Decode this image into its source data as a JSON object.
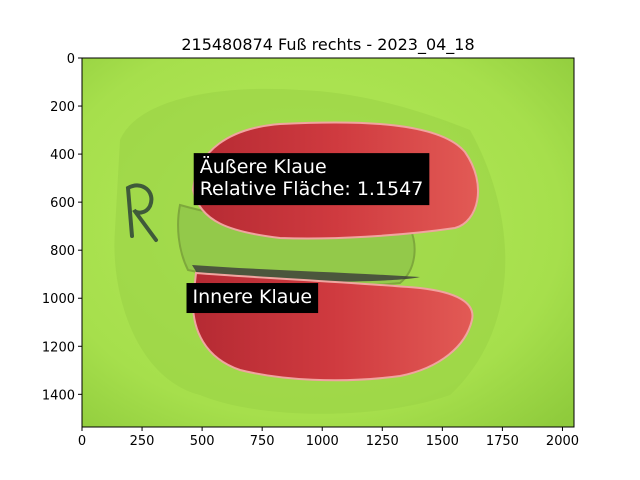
{
  "chart_data": {
    "type": "image",
    "title": "215480874 Fuß rechts - 2023_04_18",
    "xlim": [
      0,
      2048
    ],
    "ylim": [
      1536,
      0
    ],
    "xticks": [
      0,
      250,
      500,
      750,
      1000,
      1250,
      1500,
      1750,
      2000
    ],
    "yticks": [
      0,
      200,
      400,
      600,
      800,
      1000,
      1200,
      1400
    ],
    "annotations": [
      {
        "lines": [
          "Äußere Klaue",
          "Relative Fläche: 1.1547"
        ],
        "x": 490,
        "y": 500
      },
      {
        "lines": [
          "Innere Klaue"
        ],
        "x": 460,
        "y": 995
      }
    ],
    "colors": {
      "background_green": "#a8e24e",
      "claw_red": "#c8323a",
      "label_box": "#000000",
      "label_text": "#ffffff"
    }
  }
}
